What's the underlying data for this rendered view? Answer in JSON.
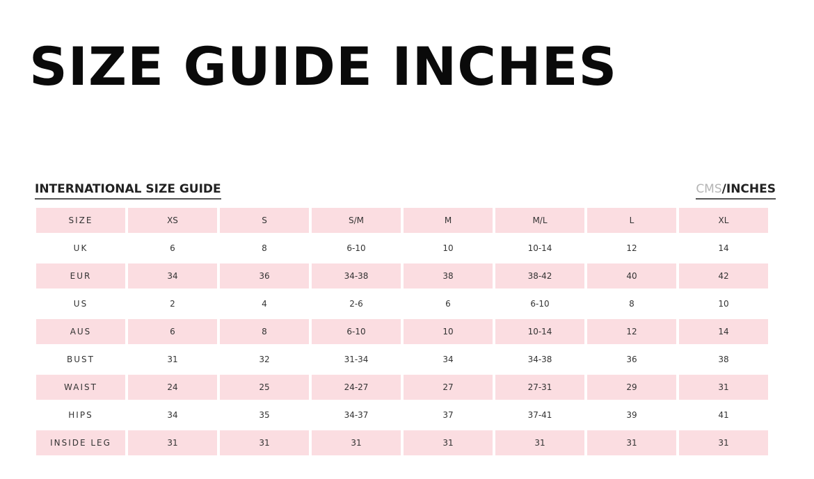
{
  "title": "SIZE GUIDE INCHES",
  "subtitle": "INTERNATIONAL SIZE GUIDE",
  "units": {
    "cms": "CMS",
    "separator": "/",
    "inches": "INCHES"
  },
  "colors": {
    "row_highlight": "#fbdde1"
  },
  "rows": [
    [
      "SIZE",
      "XS",
      "S",
      "S/M",
      "M",
      "M/L",
      "L",
      "XL"
    ],
    [
      "UK",
      "6",
      "8",
      "6-10",
      "10",
      "10-14",
      "12",
      "14"
    ],
    [
      "EUR",
      "34",
      "36",
      "34-38",
      "38",
      "38-42",
      "40",
      "42"
    ],
    [
      "US",
      "2",
      "4",
      "2-6",
      "6",
      "6-10",
      "8",
      "10"
    ],
    [
      "AUS",
      "6",
      "8",
      "6-10",
      "10",
      "10-14",
      "12",
      "14"
    ],
    [
      "BUST",
      "31",
      "32",
      "31-34",
      "34",
      "34-38",
      "36",
      "38"
    ],
    [
      "WAIST",
      "24",
      "25",
      "24-27",
      "27",
      "27-31",
      "29",
      "31"
    ],
    [
      "HIPS",
      "34",
      "35",
      "34-37",
      "37",
      "37-41",
      "39",
      "41"
    ],
    [
      "INSIDE LEG",
      "31",
      "31",
      "31",
      "31",
      "31",
      "31",
      "31"
    ]
  ]
}
